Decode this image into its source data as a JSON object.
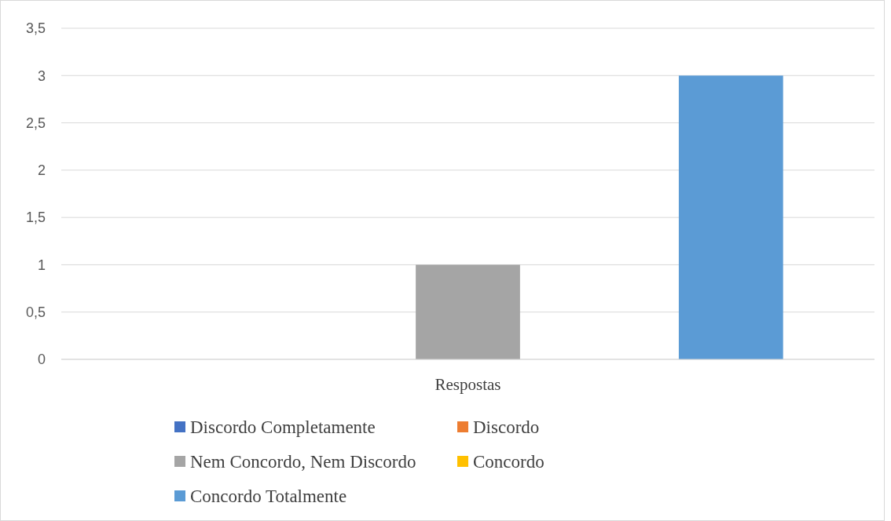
{
  "chart_data": {
    "type": "bar",
    "categories": [
      "Respostas"
    ],
    "series": [
      {
        "name": "Discordo Completamente",
        "color": "#4472c4",
        "values": [
          0
        ]
      },
      {
        "name": "Discordo",
        "color": "#ed7d31",
        "values": [
          0
        ]
      },
      {
        "name": "Nem Concordo, Nem Discordo",
        "color": "#a5a5a5",
        "values": [
          1
        ]
      },
      {
        "name": "Concordo",
        "color": "#ffc000",
        "values": [
          0
        ]
      },
      {
        "name": "Concordo Totalmente",
        "color": "#5b9bd5",
        "values": [
          3
        ]
      }
    ],
    "ylim": [
      0,
      3.5
    ],
    "yticks": [
      0,
      {
        "value": 0.5,
        "label": "0,5"
      },
      1,
      {
        "value": 1.5,
        "label": "1,5"
      },
      2,
      {
        "value": 2.5,
        "label": "2,5"
      },
      3,
      {
        "value": 3.5,
        "label": "3,5"
      }
    ],
    "grid": "y",
    "legend": "bottom"
  }
}
